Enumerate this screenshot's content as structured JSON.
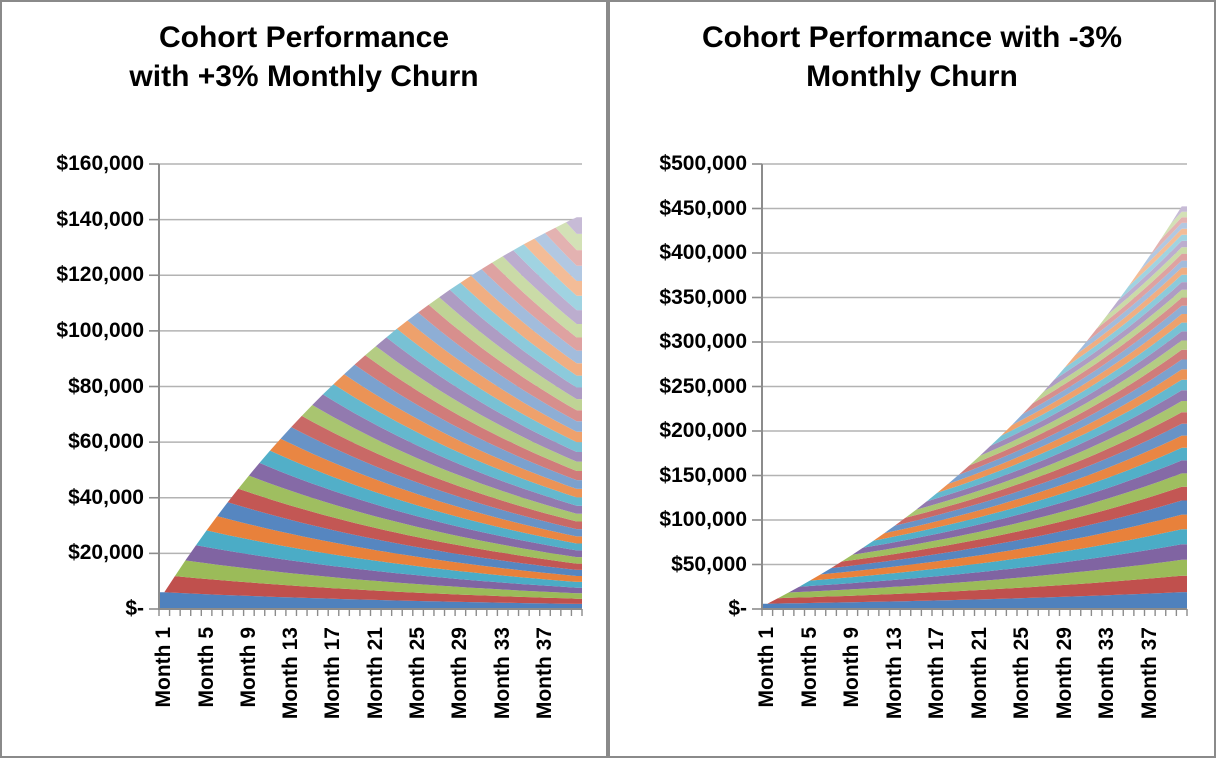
{
  "figure": {
    "description": "Two side-by-side stacked-area cohort revenue charts",
    "currency_symbol": "$"
  },
  "colors": {
    "series_palette": [
      "#4F81BD",
      "#C0504D",
      "#9BBB59",
      "#8064A2",
      "#4BACC6",
      "#E8813B"
    ],
    "tint_steps_per_cycle": [
      0,
      0.04,
      0.14,
      0.25,
      0.36,
      0.47,
      0.56
    ],
    "gridline": "#b3b3b3",
    "axis": "#8c8c8c",
    "text": "#000000",
    "panel_border": "#8a8a8a",
    "background": "#ffffff"
  },
  "chart_data": [
    {
      "chart_type": "stacked-area",
      "title": "Cohort Performance with +3% Monthly Churn",
      "title_line1": "Cohort Performance",
      "title_line2": "with +3% Monthly Churn",
      "months": 40,
      "cohorts": 40,
      "new_cohort_monthly_revenue": 6000,
      "monthly_churn_label": "+3%",
      "monthly_retention_factor": 0.97,
      "series_note": "40 monthly cohorts stacked bottom-to-top; cohort i starts in month i at $6,000 and declines 3% per month",
      "x_axis": {
        "months_total": 40,
        "labeled_months": [
          1,
          5,
          9,
          13,
          17,
          21,
          25,
          29,
          33,
          37
        ],
        "labels": [
          "Month 1",
          "Month 5",
          "Month 9",
          "Month 13",
          "Month 17",
          "Month 21",
          "Month 25",
          "Month 29",
          "Month 33",
          "Month 37"
        ]
      },
      "y_axis": {
        "min": 0,
        "max": 160000,
        "step": 20000,
        "tick_labels": [
          "$160,000",
          "$140,000",
          "$120,000",
          "$100,000",
          "$80,000",
          "$60,000",
          "$40,000",
          "$20,000",
          "$-"
        ]
      },
      "stack_totals_by_month": [
        6000,
        11820,
        17465,
        22941,
        28253,
        33404,
        38402,
        43249,
        47952,
        52513,
        56938,
        61230,
        65393,
        69431,
        73348,
        77148,
        80833,
        84408,
        87876,
        91240,
        94503,
        97668,
        100738,
        103715,
        106604,
        109406,
        112124,
        114760,
        117317,
        119798,
        122204,
        124538,
        126801,
        128997,
        131128,
        133194,
        135198,
        137142,
        139028,
        140857
      ]
    },
    {
      "chart_type": "stacked-area",
      "title": "Cohort Performance with -3% Monthly Churn",
      "title_line1": "Cohort Performance with -3%",
      "title_line2": "Monthly Churn",
      "months": 40,
      "cohorts": 40,
      "new_cohort_monthly_revenue": 6000,
      "monthly_churn_label": "-3%",
      "monthly_retention_factor": 1.03,
      "series_note": "40 monthly cohorts stacked bottom-to-top; cohort i starts in month i at $6,000 and grows 3% per month",
      "x_axis": {
        "months_total": 40,
        "labeled_months": [
          1,
          5,
          9,
          13,
          17,
          21,
          25,
          29,
          33,
          37
        ],
        "labels": [
          "Month 1",
          "Month 5",
          "Month 9",
          "Month 13",
          "Month 17",
          "Month 21",
          "Month 25",
          "Month 29",
          "Month 33",
          "Month 37"
        ]
      },
      "y_axis": {
        "min": 0,
        "max": 500000,
        "step": 50000,
        "tick_labels": [
          "$500,000",
          "$450,000",
          "$400,000",
          "$350,000",
          "$300,000",
          "$250,000",
          "$200,000",
          "$150,000",
          "$100,000",
          "$50,000",
          "$-"
        ]
      },
      "stack_totals_by_month": [
        6000,
        12180,
        18545,
        25102,
        31855,
        38811,
        45975,
        53354,
        60955,
        68783,
        76847,
        85152,
        93707,
        102518,
        111594,
        120941,
        130570,
        140487,
        150701,
        161222,
        172059,
        183221,
        194717,
        206559,
        218756,
        231318,
        244258,
        257586,
        271313,
        285453,
        300016,
        315017,
        330467,
        346381,
        362772,
        379656,
        397045,
        414957,
        433405,
        452408
      ]
    }
  ]
}
